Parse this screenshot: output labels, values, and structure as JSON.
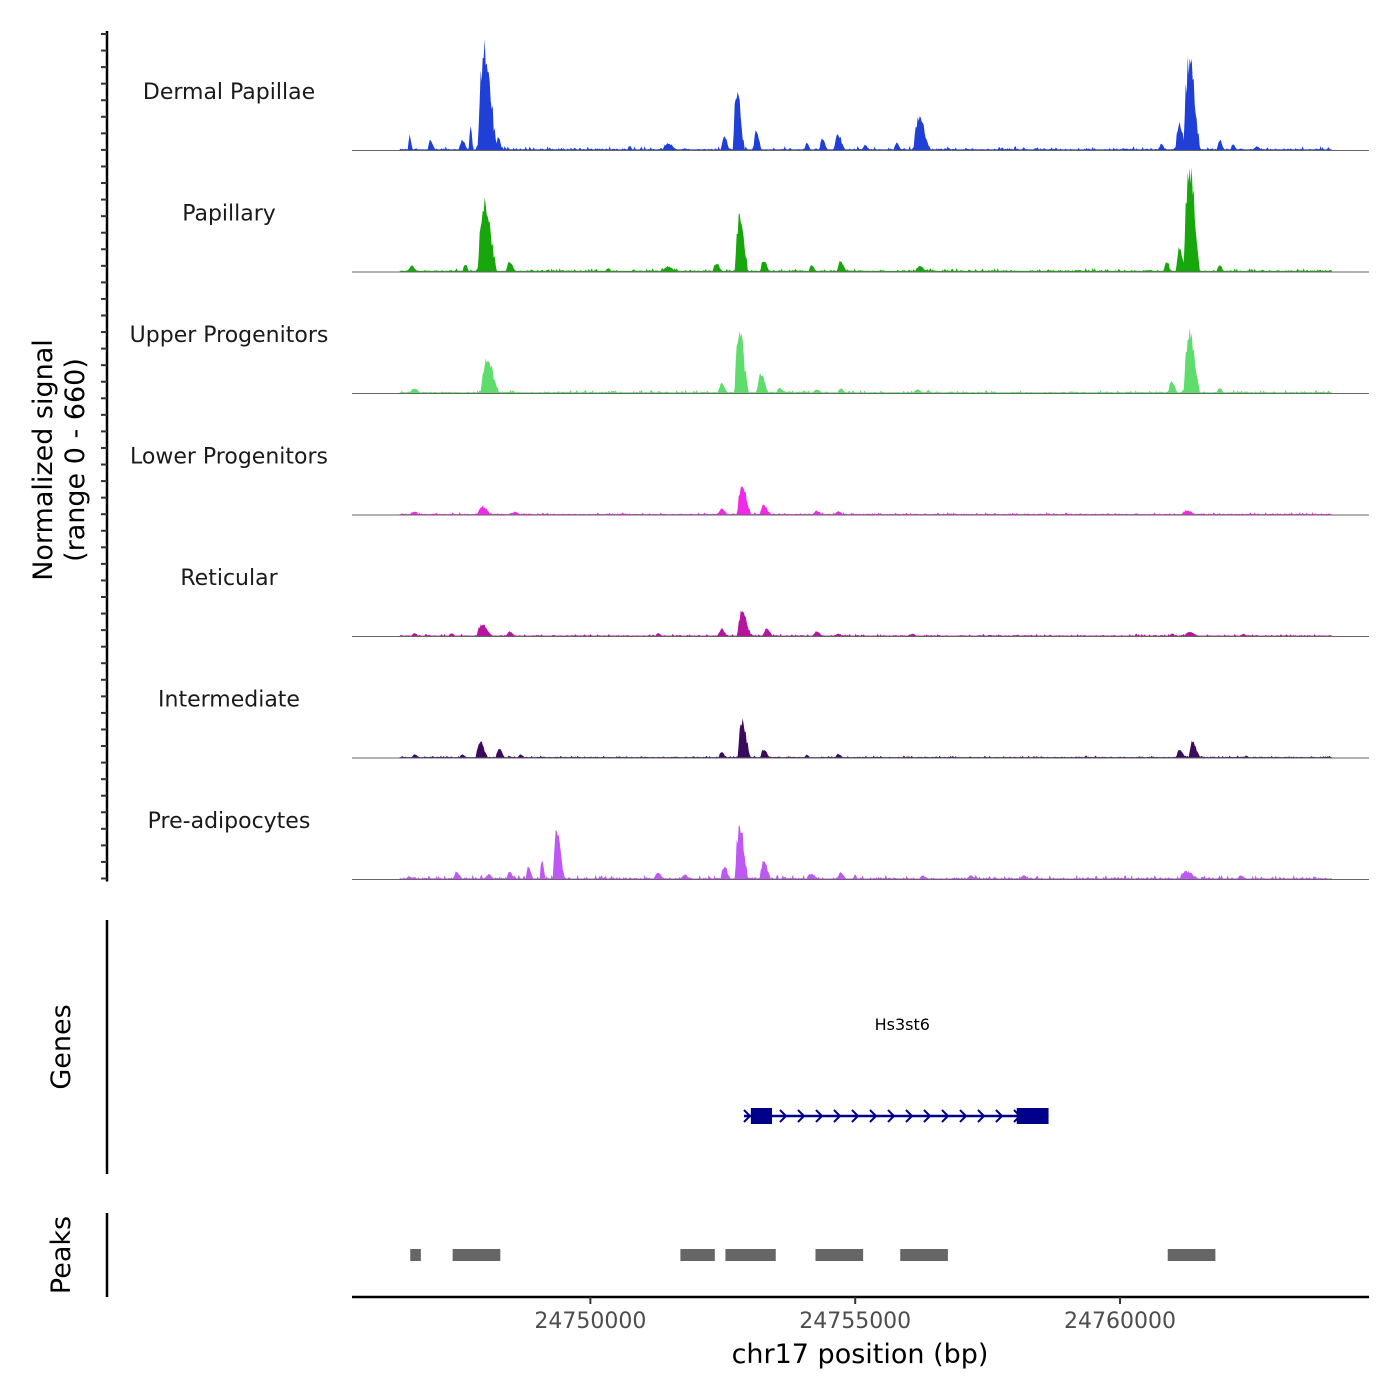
{
  "chart_data": {
    "type": "area",
    "ylabel_line1": "Normalized signal",
    "ylabel_line2": "(range 0 - 660)",
    "ylim": [
      0,
      660
    ],
    "xlabel": "chr17 position (bp)",
    "xlim": [
      24745500,
      24764700
    ],
    "xticks": [
      24750000,
      24755000,
      24760000
    ],
    "xtick_labels": [
      "24750000",
      "24755000",
      "24760000"
    ],
    "signal_start": 24746400,
    "signal_end": 24764000,
    "peak_shape": [
      [
        0.0,
        0.0
      ],
      [
        0.06,
        0.1
      ],
      [
        0.11,
        0.4
      ],
      [
        0.17,
        0.72
      ],
      [
        0.22,
        0.6
      ],
      [
        0.28,
        0.97
      ],
      [
        0.33,
        0.8
      ],
      [
        0.39,
        1.0
      ],
      [
        0.44,
        0.85
      ],
      [
        0.5,
        0.93
      ],
      [
        0.56,
        0.7
      ],
      [
        0.61,
        0.78
      ],
      [
        0.67,
        0.55
      ],
      [
        0.72,
        0.35
      ],
      [
        0.78,
        0.4
      ],
      [
        0.83,
        0.18
      ],
      [
        0.89,
        0.22
      ],
      [
        0.94,
        0.06
      ],
      [
        1.0,
        0.0
      ]
    ],
    "series": [
      {
        "name": "Dermal Papillae",
        "color": "#1F3FD6",
        "baseline": 6,
        "noise": 9,
        "peaks": [
          {
            "center": 24746600,
            "width": 100,
            "value": 90
          },
          {
            "center": 24747000,
            "width": 150,
            "value": 60
          },
          {
            "center": 24747600,
            "width": 170,
            "value": 70
          },
          {
            "center": 24748280,
            "width": 130,
            "value": 85
          },
          {
            "center": 24747750,
            "width": 90,
            "value": 140
          },
          {
            "center": 24748050,
            "width": 380,
            "value": 605
          },
          {
            "center": 24750750,
            "width": 110,
            "value": 30
          },
          {
            "center": 24751500,
            "width": 300,
            "value": 45
          },
          {
            "center": 24752550,
            "width": 180,
            "value": 85
          },
          {
            "center": 24752800,
            "width": 230,
            "value": 360
          },
          {
            "center": 24753150,
            "width": 160,
            "value": 130
          },
          {
            "center": 24754100,
            "width": 130,
            "value": 50
          },
          {
            "center": 24754400,
            "width": 170,
            "value": 70
          },
          {
            "center": 24754700,
            "width": 220,
            "value": 95
          },
          {
            "center": 24755200,
            "width": 150,
            "value": 35
          },
          {
            "center": 24755800,
            "width": 150,
            "value": 45
          },
          {
            "center": 24756250,
            "width": 330,
            "value": 205
          },
          {
            "center": 24760800,
            "width": 140,
            "value": 40
          },
          {
            "center": 24761150,
            "width": 230,
            "value": 155
          },
          {
            "center": 24761350,
            "width": 330,
            "value": 545
          },
          {
            "center": 24761900,
            "width": 150,
            "value": 60
          },
          {
            "center": 24762150,
            "width": 140,
            "value": 40
          },
          {
            "center": 24762600,
            "width": 200,
            "value": 25
          }
        ]
      },
      {
        "name": "Papillary",
        "color": "#17A60B",
        "baseline": 6,
        "noise": 8,
        "peaks": [
          {
            "center": 24746650,
            "width": 180,
            "value": 40
          },
          {
            "center": 24747650,
            "width": 120,
            "value": 50
          },
          {
            "center": 24748050,
            "width": 380,
            "value": 400
          },
          {
            "center": 24748500,
            "width": 200,
            "value": 60
          },
          {
            "center": 24750350,
            "width": 130,
            "value": 25
          },
          {
            "center": 24751500,
            "width": 300,
            "value": 35
          },
          {
            "center": 24752400,
            "width": 200,
            "value": 55
          },
          {
            "center": 24752850,
            "width": 260,
            "value": 345
          },
          {
            "center": 24753300,
            "width": 200,
            "value": 70
          },
          {
            "center": 24754200,
            "width": 170,
            "value": 40
          },
          {
            "center": 24754750,
            "width": 200,
            "value": 65
          },
          {
            "center": 24756250,
            "width": 260,
            "value": 35
          },
          {
            "center": 24760900,
            "width": 160,
            "value": 60
          },
          {
            "center": 24761150,
            "width": 200,
            "value": 140
          },
          {
            "center": 24761350,
            "width": 320,
            "value": 605
          },
          {
            "center": 24761900,
            "width": 160,
            "value": 40
          }
        ]
      },
      {
        "name": "Upper Progenitors",
        "color": "#5EDC6C",
        "baseline": 6,
        "noise": 7,
        "peaks": [
          {
            "center": 24746700,
            "width": 240,
            "value": 30
          },
          {
            "center": 24748100,
            "width": 370,
            "value": 200
          },
          {
            "center": 24752500,
            "width": 200,
            "value": 60
          },
          {
            "center": 24752850,
            "width": 280,
            "value": 375
          },
          {
            "center": 24753250,
            "width": 230,
            "value": 120
          },
          {
            "center": 24753600,
            "width": 200,
            "value": 35
          },
          {
            "center": 24754300,
            "width": 220,
            "value": 25
          },
          {
            "center": 24754750,
            "width": 180,
            "value": 30
          },
          {
            "center": 24756200,
            "width": 220,
            "value": 25
          },
          {
            "center": 24761000,
            "width": 200,
            "value": 70
          },
          {
            "center": 24761350,
            "width": 320,
            "value": 365
          },
          {
            "center": 24761900,
            "width": 180,
            "value": 30
          }
        ]
      },
      {
        "name": "Lower Progenitors",
        "color": "#F02BE7",
        "baseline": 5,
        "noise": 5,
        "peaks": [
          {
            "center": 24746700,
            "width": 180,
            "value": 22
          },
          {
            "center": 24748000,
            "width": 300,
            "value": 50
          },
          {
            "center": 24748600,
            "width": 180,
            "value": 22
          },
          {
            "center": 24752500,
            "width": 200,
            "value": 40
          },
          {
            "center": 24752900,
            "width": 280,
            "value": 175
          },
          {
            "center": 24753300,
            "width": 220,
            "value": 60
          },
          {
            "center": 24754300,
            "width": 220,
            "value": 25
          },
          {
            "center": 24754700,
            "width": 180,
            "value": 25
          },
          {
            "center": 24761300,
            "width": 300,
            "value": 28
          }
        ]
      },
      {
        "name": "Reticular",
        "color": "#B5159F",
        "baseline": 5,
        "noise": 5,
        "peaks": [
          {
            "center": 24746700,
            "width": 180,
            "value": 20
          },
          {
            "center": 24747400,
            "width": 160,
            "value": 18
          },
          {
            "center": 24748000,
            "width": 330,
            "value": 70
          },
          {
            "center": 24748500,
            "width": 200,
            "value": 30
          },
          {
            "center": 24751300,
            "width": 150,
            "value": 22
          },
          {
            "center": 24752500,
            "width": 200,
            "value": 45
          },
          {
            "center": 24752900,
            "width": 280,
            "value": 150
          },
          {
            "center": 24753350,
            "width": 200,
            "value": 50
          },
          {
            "center": 24754300,
            "width": 220,
            "value": 30
          },
          {
            "center": 24754700,
            "width": 180,
            "value": 20
          },
          {
            "center": 24756100,
            "width": 180,
            "value": 18
          },
          {
            "center": 24761000,
            "width": 150,
            "value": 20
          },
          {
            "center": 24761350,
            "width": 300,
            "value": 30
          },
          {
            "center": 24762350,
            "width": 150,
            "value": 15
          }
        ]
      },
      {
        "name": "Intermediate",
        "color": "#3A0A5C",
        "baseline": 5,
        "noise": 4,
        "peaks": [
          {
            "center": 24746700,
            "width": 150,
            "value": 22
          },
          {
            "center": 24747600,
            "width": 160,
            "value": 22
          },
          {
            "center": 24747950,
            "width": 250,
            "value": 95
          },
          {
            "center": 24748300,
            "width": 180,
            "value": 60
          },
          {
            "center": 24748700,
            "width": 150,
            "value": 20
          },
          {
            "center": 24752500,
            "width": 180,
            "value": 35
          },
          {
            "center": 24752900,
            "width": 250,
            "value": 225
          },
          {
            "center": 24753300,
            "width": 200,
            "value": 50
          },
          {
            "center": 24754100,
            "width": 130,
            "value": 20
          },
          {
            "center": 24754700,
            "width": 160,
            "value": 25
          },
          {
            "center": 24761150,
            "width": 200,
            "value": 50
          },
          {
            "center": 24761400,
            "width": 220,
            "value": 100
          },
          {
            "center": 24762400,
            "width": 130,
            "value": 15
          }
        ]
      },
      {
        "name": "Pre-adipocytes",
        "color": "#BD59F2",
        "baseline": 6,
        "noise": 10,
        "peaks": [
          {
            "center": 24746600,
            "width": 150,
            "value": 20
          },
          {
            "center": 24747500,
            "width": 200,
            "value": 45
          },
          {
            "center": 24748100,
            "width": 200,
            "value": 30
          },
          {
            "center": 24748500,
            "width": 180,
            "value": 45
          },
          {
            "center": 24748850,
            "width": 150,
            "value": 70
          },
          {
            "center": 24749100,
            "width": 120,
            "value": 110
          },
          {
            "center": 24749400,
            "width": 230,
            "value": 310
          },
          {
            "center": 24751300,
            "width": 220,
            "value": 40
          },
          {
            "center": 24751800,
            "width": 200,
            "value": 30
          },
          {
            "center": 24752550,
            "width": 200,
            "value": 80
          },
          {
            "center": 24752850,
            "width": 260,
            "value": 325
          },
          {
            "center": 24753300,
            "width": 230,
            "value": 115
          },
          {
            "center": 24754200,
            "width": 250,
            "value": 35
          },
          {
            "center": 24754750,
            "width": 200,
            "value": 40
          },
          {
            "center": 24756300,
            "width": 200,
            "value": 25
          },
          {
            "center": 24757200,
            "width": 200,
            "value": 25
          },
          {
            "center": 24758200,
            "width": 200,
            "value": 25
          },
          {
            "center": 24761300,
            "width": 400,
            "value": 50
          },
          {
            "center": 24762300,
            "width": 200,
            "value": 25
          }
        ]
      }
    ],
    "genes": [
      {
        "name": "Hs3st6",
        "color": "#00008B",
        "strand": "+",
        "start": 24752900,
        "end": 24758650,
        "exons": [
          [
            24753030,
            24753430
          ],
          [
            24758050,
            24758650
          ]
        ]
      }
    ],
    "genes_label": "Genes",
    "peaks_label": "Peaks",
    "peak_regions": [
      [
        24746600,
        24746800
      ],
      [
        24747400,
        24748300
      ],
      [
        24751700,
        24752350
      ],
      [
        24752550,
        24753500
      ],
      [
        24754250,
        24755150
      ],
      [
        24755850,
        24756750
      ],
      [
        24760900,
        24761800
      ]
    ],
    "peak_color": "#666666"
  }
}
